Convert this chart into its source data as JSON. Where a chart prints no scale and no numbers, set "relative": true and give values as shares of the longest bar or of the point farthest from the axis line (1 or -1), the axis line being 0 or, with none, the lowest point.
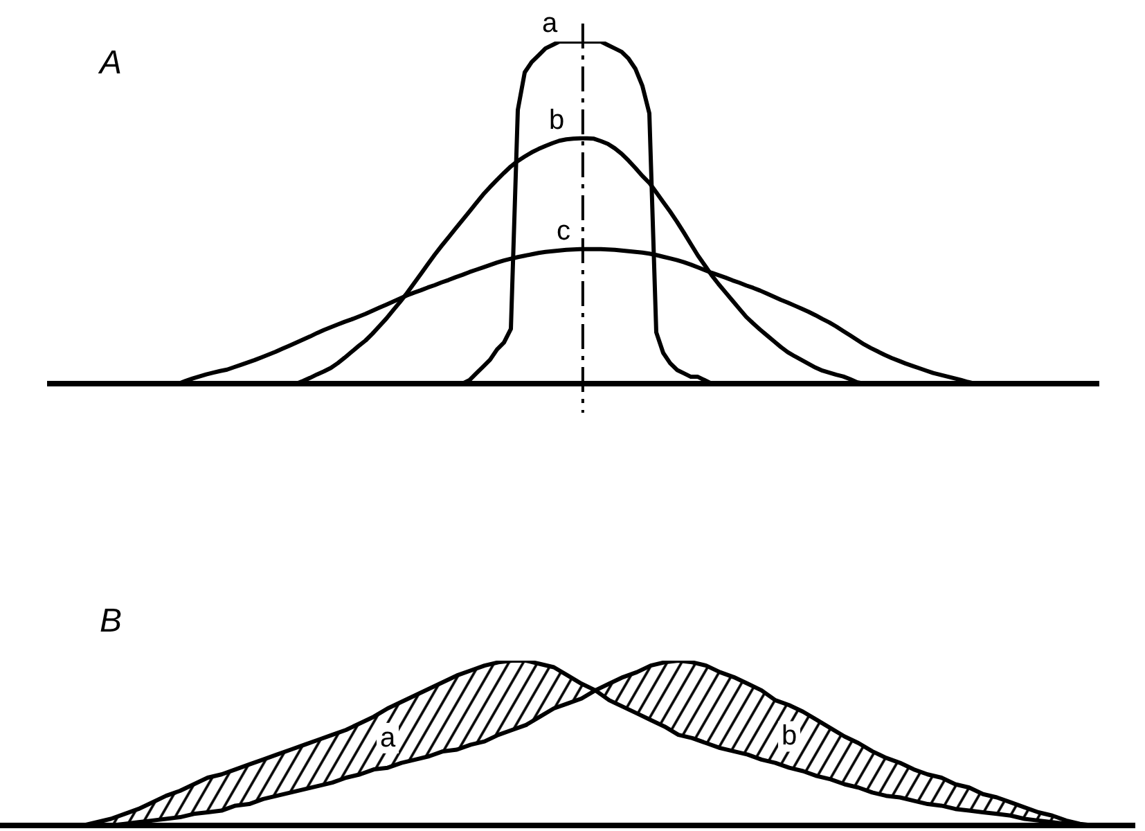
{
  "chart_data": [
    {
      "type": "line",
      "title": "A",
      "relative": true,
      "marker": "none",
      "line_style": "solid",
      "categories": [
        null,
        null,
        null,
        null,
        null,
        null,
        null,
        null,
        null,
        null,
        null,
        null,
        null,
        null,
        null,
        null,
        null,
        null,
        null,
        null,
        null,
        null,
        null,
        null,
        null,
        null,
        null,
        null,
        null,
        null,
        null,
        null,
        null,
        null,
        null,
        null,
        null,
        null,
        null,
        null,
        null,
        null,
        null,
        null,
        null,
        null,
        null,
        null,
        null,
        null,
        null,
        null,
        null,
        null,
        null,
        null,
        null,
        null,
        null,
        null,
        null,
        null,
        null,
        null,
        null,
        null,
        null,
        null,
        null,
        null,
        null,
        null,
        null,
        null,
        null,
        null,
        null,
        null,
        null,
        null,
        null,
        null,
        null,
        null,
        null,
        null,
        null,
        null,
        null,
        null,
        null,
        null,
        null,
        null,
        null,
        null,
        null,
        null,
        null,
        null,
        null,
        null,
        null,
        null,
        null,
        null,
        null,
        null,
        null,
        null,
        null,
        null,
        null,
        null,
        null,
        null,
        null,
        null,
        null,
        null,
        null,
        null,
        null,
        null,
        null,
        null,
        null,
        null,
        null,
        null,
        null,
        null,
        null,
        null,
        null,
        null,
        null,
        null,
        null,
        null,
        null,
        null,
        null,
        null,
        null,
        null,
        null,
        null,
        null,
        null,
        null,
        null,
        null
      ],
      "series": [
        {
          "name": "a",
          "color": "#000000",
          "values": [
            null,
            null,
            null,
            null,
            null,
            null,
            null,
            null,
            null,
            null,
            null,
            null,
            null,
            null,
            null,
            null,
            null,
            null,
            null,
            null,
            null,
            null,
            null,
            null,
            null,
            null,
            null,
            null,
            null,
            null,
            null,
            null,
            null,
            null,
            null,
            null,
            null,
            null,
            null,
            null,
            null,
            null,
            null,
            null,
            null,
            null,
            null,
            null,
            null,
            null,
            null,
            null,
            null,
            null,
            null,
            null,
            null,
            null,
            null,
            null,
            0,
            0.01,
            0.03,
            0.05,
            0.07,
            0.1,
            0.12,
            0.16,
            0.8,
            0.91,
            0.94,
            0.96,
            0.98,
            0.99,
            1,
            1,
            1,
            1,
            1,
            1,
            1,
            0.99,
            0.98,
            0.97,
            0.95,
            0.92,
            0.87,
            0.79,
            0.15,
            0.09,
            0.06,
            0.04,
            0.03,
            0.02,
            0.02,
            0.01,
            0,
            null,
            null,
            null,
            null,
            null,
            null,
            null,
            null,
            null,
            null,
            null,
            null,
            null,
            null,
            null,
            null,
            null,
            null,
            null,
            null,
            null,
            null,
            null,
            null,
            null,
            null,
            null,
            null,
            null,
            null,
            null,
            null,
            null,
            null,
            null,
            null,
            null,
            null,
            null,
            null,
            null,
            null,
            null,
            null,
            null,
            null,
            null,
            null,
            null,
            null,
            null,
            null,
            null,
            null,
            null,
            null
          ]
        },
        {
          "name": "b",
          "color": "#000000",
          "values": [
            null,
            null,
            null,
            null,
            null,
            null,
            null,
            null,
            null,
            null,
            null,
            null,
            null,
            null,
            null,
            null,
            null,
            null,
            null,
            null,
            null,
            null,
            null,
            null,
            null,
            null,
            null,
            null,
            null,
            null,
            null,
            null,
            null,
            null,
            null,
            null,
            0,
            0.008,
            0.017,
            0.027,
            0.036,
            0.046,
            0.06,
            0.076,
            0.093,
            0.11,
            0.126,
            0.146,
            0.168,
            0.19,
            0.215,
            0.239,
            0.265,
            0.293,
            0.321,
            0.349,
            0.377,
            0.403,
            0.428,
            0.453,
            0.478,
            0.503,
            0.528,
            0.553,
            0.575,
            0.596,
            0.616,
            0.635,
            0.651,
            0.664,
            0.676,
            0.686,
            0.695,
            0.703,
            0.71,
            0.714,
            0.716,
            0.717,
            0.717,
            0.716,
            0.709,
            0.701,
            0.688,
            0.672,
            0.652,
            0.63,
            0.607,
            0.587,
            0.559,
            0.531,
            0.503,
            0.473,
            0.441,
            0.408,
            0.375,
            0.346,
            0.317,
            0.291,
            0.267,
            0.243,
            0.219,
            0.195,
            0.176,
            0.158,
            0.141,
            0.124,
            0.107,
            0.092,
            0.08,
            0.069,
            0.058,
            0.047,
            0.038,
            0.032,
            0.026,
            0.021,
            0.013,
            0.004,
            0,
            null,
            null,
            null,
            null,
            null,
            null,
            null,
            null,
            null,
            null,
            null,
            null,
            null,
            null,
            null,
            null,
            null,
            null,
            null,
            null,
            null,
            null,
            null,
            null,
            null,
            null,
            null,
            null,
            null,
            null,
            null,
            null,
            null,
            null
          ]
        },
        {
          "name": "c",
          "color": "#000000",
          "values": [
            null,
            null,
            null,
            null,
            null,
            null,
            null,
            null,
            null,
            null,
            null,
            null,
            null,
            null,
            null,
            null,
            null,
            null,
            null,
            0,
            0.008,
            0.015,
            0.021,
            0.027,
            0.032,
            0.037,
            0.041,
            0.048,
            0.055,
            0.062,
            0.069,
            0.077,
            0.085,
            0.093,
            0.102,
            0.111,
            0.12,
            0.129,
            0.138,
            0.148,
            0.157,
            0.165,
            0.173,
            0.181,
            0.188,
            0.196,
            0.204,
            0.213,
            0.222,
            0.231,
            0.24,
            0.249,
            0.258,
            0.266,
            0.273,
            0.281,
            0.288,
            0.296,
            0.303,
            0.311,
            0.318,
            0.326,
            0.333,
            0.34,
            0.347,
            0.354,
            0.36,
            0.365,
            0.37,
            0.374,
            0.378,
            0.382,
            0.385,
            0.387,
            0.389,
            0.391,
            0.392,
            0.393,
            0.393,
            0.393,
            0.393,
            0.392,
            0.391,
            0.389,
            0.387,
            0.385,
            0.383,
            0.38,
            0.376,
            0.371,
            0.366,
            0.361,
            0.355,
            0.348,
            0.34,
            0.332,
            0.324,
            0.317,
            0.31,
            0.302,
            0.295,
            0.287,
            0.28,
            0.272,
            0.263,
            0.254,
            0.245,
            0.237,
            0.228,
            0.219,
            0.21,
            0.2,
            0.189,
            0.179,
            0.167,
            0.154,
            0.141,
            0.128,
            0.115,
            0.104,
            0.094,
            0.084,
            0.075,
            0.067,
            0.059,
            0.052,
            0.045,
            0.038,
            0.031,
            0.026,
            0.021,
            0.016,
            0.011,
            0.005,
            0,
            null,
            null,
            null,
            null,
            null,
            null,
            null,
            null,
            null,
            null,
            null,
            null,
            null,
            null,
            null,
            null,
            null,
            null
          ]
        }
      ]
    },
    {
      "type": "line",
      "title": "B",
      "relative": true,
      "marker": "none",
      "line_style": "solid",
      "categories": [
        null,
        null,
        null,
        null,
        null,
        null,
        null,
        null,
        null,
        null,
        null,
        null,
        null,
        null,
        null,
        null,
        null,
        null,
        null,
        null,
        null,
        null,
        null,
        null,
        null,
        null,
        null,
        null,
        null,
        null,
        null,
        null,
        null,
        null,
        null,
        null,
        null,
        null,
        null,
        null,
        null,
        null,
        null,
        null,
        null,
        null,
        null,
        null,
        null,
        null,
        null,
        null,
        null,
        null,
        null,
        null,
        null,
        null,
        null,
        null,
        null,
        null,
        null,
        null,
        null,
        null,
        null,
        null,
        null,
        null,
        null,
        null,
        null,
        null,
        null,
        null,
        null,
        null,
        null,
        null,
        null,
        null,
        null
      ],
      "series": [
        {
          "name": "a",
          "color": "#000000",
          "values": [
            null,
            null,
            null,
            null,
            null,
            null,
            0,
            0.02,
            0.04,
            0.07,
            0.1,
            0.14,
            0.18,
            0.21,
            0.25,
            0.29,
            0.31,
            0.34,
            0.37,
            0.4,
            0.43,
            0.46,
            0.49,
            0.52,
            0.55,
            0.58,
            0.62,
            0.66,
            0.71,
            0.75,
            0.79,
            0.83,
            0.87,
            0.91,
            0.94,
            0.97,
            0.99,
            1,
            1,
            0.98,
            0.96,
            0.91,
            0.86,
            0.82,
            0.76,
            0.72,
            0.68,
            0.64,
            0.6,
            0.55,
            0.53,
            0.5,
            0.47,
            0.45,
            0.43,
            0.4,
            0.38,
            0.35,
            0.33,
            0.3,
            0.28,
            0.25,
            0.23,
            0.2,
            0.18,
            0.17,
            0.15,
            0.13,
            0.12,
            0.1,
            0.09,
            0.08,
            0.07,
            0.06,
            0.04,
            0.03,
            0.02,
            0.01,
            0,
            null,
            null,
            null,
            null
          ],
          "lower": [
            null,
            null,
            null,
            null,
            null,
            null,
            0,
            0,
            0,
            0.01,
            0.02,
            0.03,
            0.04,
            0.05,
            0.07,
            0.08,
            0.09,
            0.12,
            0.13,
            0.16,
            0.18,
            0.2,
            0.22,
            0.24,
            0.26,
            0.29,
            0.31,
            0.34,
            0.35,
            0.38,
            0.4,
            0.42,
            0.45,
            0.46,
            0.49,
            0.51,
            0.55,
            0.58,
            0.61,
            0.66,
            0.71,
            0.74,
            0.77,
            0.82,
            null,
            null,
            null,
            null,
            null,
            null,
            null,
            null,
            null,
            null,
            null,
            null,
            null,
            null,
            null,
            null,
            null,
            null,
            null,
            null,
            null,
            null,
            null,
            null,
            null,
            null,
            null,
            null,
            null,
            null,
            null,
            null,
            null,
            null,
            null,
            null,
            null,
            null,
            null
          ],
          "upper": [
            null,
            null,
            null,
            null,
            null,
            null,
            0,
            0.02,
            0.04,
            0.07,
            0.1,
            0.14,
            0.18,
            0.21,
            0.25,
            0.29,
            0.31,
            0.34,
            0.37,
            0.4,
            0.43,
            0.46,
            0.49,
            0.52,
            0.55,
            0.58,
            0.62,
            0.66,
            0.71,
            0.75,
            0.79,
            0.83,
            0.87,
            0.91,
            0.94,
            0.97,
            0.99,
            1,
            1,
            0.98,
            0.96,
            0.91,
            0.86,
            0.82,
            null,
            null,
            null,
            null,
            null,
            null,
            null,
            null,
            null,
            null,
            null,
            null,
            null,
            null,
            null,
            null,
            null,
            null,
            null,
            null,
            null,
            null,
            null,
            null,
            null,
            null,
            null,
            null,
            null,
            null,
            null,
            null,
            null,
            null,
            null,
            null,
            null,
            null,
            null
          ]
        },
        {
          "name": "b",
          "color": "#000000",
          "values": [
            null,
            null,
            null,
            null,
            null,
            null,
            null,
            null,
            0,
            0.01,
            0.02,
            0.03,
            0.04,
            0.05,
            0.07,
            0.08,
            0.09,
            0.12,
            0.13,
            0.16,
            0.18,
            0.2,
            0.22,
            0.24,
            0.26,
            0.29,
            0.31,
            0.34,
            0.35,
            0.38,
            0.4,
            0.42,
            0.45,
            0.46,
            0.49,
            0.51,
            0.55,
            0.58,
            0.61,
            0.66,
            0.71,
            0.74,
            0.77,
            0.82,
            0.86,
            0.9,
            0.93,
            0.97,
            0.99,
            1,
            0.99,
            0.97,
            0.93,
            0.9,
            0.86,
            0.82,
            0.76,
            0.73,
            0.69,
            0.64,
            0.59,
            0.54,
            0.5,
            0.45,
            0.41,
            0.38,
            0.34,
            0.31,
            0.29,
            0.25,
            0.23,
            0.19,
            0.17,
            0.14,
            0.11,
            0.08,
            0.06,
            0.03,
            0.01,
            0,
            null,
            null,
            null
          ],
          "lower": [
            null,
            null,
            null,
            null,
            null,
            null,
            null,
            null,
            null,
            null,
            null,
            null,
            null,
            null,
            null,
            null,
            null,
            null,
            null,
            null,
            null,
            null,
            null,
            null,
            null,
            null,
            null,
            null,
            null,
            null,
            null,
            null,
            null,
            null,
            null,
            null,
            null,
            null,
            null,
            null,
            null,
            null,
            null,
            0.82,
            0.76,
            0.72,
            0.68,
            0.64,
            0.6,
            0.55,
            0.53,
            0.5,
            0.47,
            0.45,
            0.43,
            0.4,
            0.38,
            0.35,
            0.33,
            0.3,
            0.28,
            0.25,
            0.23,
            0.2,
            0.18,
            0.17,
            0.15,
            0.13,
            0.12,
            0.1,
            0.09,
            0.08,
            0.07,
            0.06,
            0.04,
            0.03,
            0.02,
            0.01,
            0,
            0,
            null,
            null,
            null
          ],
          "upper": [
            null,
            null,
            null,
            null,
            null,
            null,
            null,
            null,
            null,
            null,
            null,
            null,
            null,
            null,
            null,
            null,
            null,
            null,
            null,
            null,
            null,
            null,
            null,
            null,
            null,
            null,
            null,
            null,
            null,
            null,
            null,
            null,
            null,
            null,
            null,
            null,
            null,
            null,
            null,
            null,
            null,
            null,
            null,
            0.82,
            0.86,
            0.9,
            0.93,
            0.97,
            0.99,
            1,
            0.99,
            0.97,
            0.93,
            0.9,
            0.86,
            0.82,
            0.76,
            0.73,
            0.69,
            0.64,
            0.59,
            0.54,
            0.5,
            0.45,
            0.41,
            0.38,
            0.34,
            0.31,
            0.29,
            0.25,
            0.23,
            0.19,
            0.17,
            0.14,
            0.11,
            0.08,
            0.06,
            0.03,
            0.01,
            0,
            null,
            null,
            null
          ]
        }
      ]
    }
  ]
}
